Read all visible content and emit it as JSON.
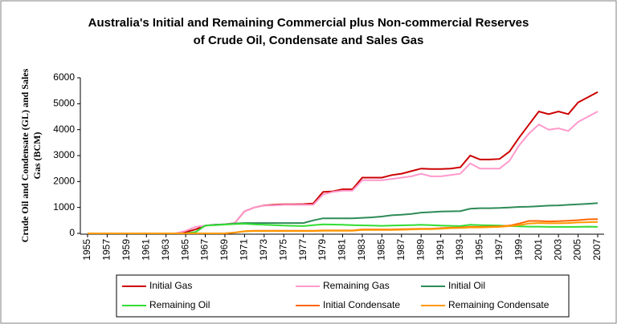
{
  "chart_data": {
    "type": "line",
    "title": [
      "Australia's Initial and Remaining Commercial plus Non-commercial Reserves",
      "of Crude Oil, Condensate and Sales Gas"
    ],
    "y_label": [
      "Crude Oil and Condensate (GL) and Sales",
      "Gas (BCM)"
    ],
    "x": [
      1955,
      1956,
      1957,
      1958,
      1959,
      1960,
      1961,
      1962,
      1963,
      1964,
      1965,
      1966,
      1967,
      1968,
      1969,
      1970,
      1971,
      1972,
      1973,
      1974,
      1975,
      1976,
      1977,
      1978,
      1979,
      1980,
      1981,
      1982,
      1983,
      1984,
      1985,
      1986,
      1987,
      1988,
      1989,
      1990,
      1991,
      1992,
      1993,
      1994,
      1995,
      1996,
      1997,
      1998,
      1999,
      2000,
      2001,
      2002,
      2003,
      2004,
      2005,
      2006,
      2007
    ],
    "xlim": [
      1955,
      2007
    ],
    "xticks": [
      1955,
      1957,
      1959,
      1961,
      1963,
      1965,
      1967,
      1969,
      1971,
      1973,
      1975,
      1977,
      1979,
      1981,
      1983,
      1985,
      1987,
      1989,
      1991,
      1993,
      1995,
      1997,
      1999,
      2001,
      2003,
      2005,
      2007
    ],
    "ylim": [
      0,
      6000
    ],
    "yticks": [
      0,
      1000,
      2000,
      3000,
      4000,
      5000,
      6000
    ],
    "grid": false,
    "series": [
      {
        "name": "Initial Gas",
        "color": "#cc0000",
        "values": [
          0,
          0,
          0,
          0,
          0,
          0,
          0,
          0,
          0,
          0,
          50,
          150,
          300,
          330,
          350,
          400,
          850,
          1000,
          1080,
          1100,
          1120,
          1120,
          1130,
          1150,
          1600,
          1620,
          1700,
          1700,
          2150,
          2150,
          2150,
          2250,
          2300,
          2400,
          2500,
          2480,
          2480,
          2500,
          2550,
          3000,
          2850,
          2850,
          2870,
          3150,
          3700,
          4200,
          4700,
          4600,
          4700,
          4600,
          5050,
          5250,
          5450
        ]
      },
      {
        "name": "Remaining Gas",
        "color": "#ff99cc",
        "values": [
          0,
          0,
          0,
          0,
          0,
          0,
          0,
          0,
          0,
          0,
          100,
          250,
          300,
          330,
          350,
          400,
          850,
          1000,
          1070,
          1080,
          1100,
          1100,
          1100,
          1100,
          1500,
          1600,
          1650,
          1650,
          2050,
          2050,
          2050,
          2100,
          2150,
          2200,
          2300,
          2200,
          2200,
          2250,
          2300,
          2700,
          2500,
          2500,
          2500,
          2800,
          3400,
          3850,
          4200,
          4000,
          4050,
          3950,
          4300,
          4500,
          4700
        ]
      },
      {
        "name": "Initial Oil",
        "color": "#2e8b57",
        "values": [
          0,
          0,
          0,
          0,
          0,
          0,
          0,
          0,
          0,
          0,
          0,
          50,
          300,
          330,
          350,
          380,
          400,
          400,
          400,
          400,
          400,
          400,
          400,
          500,
          580,
          580,
          580,
          580,
          600,
          620,
          650,
          700,
          720,
          750,
          800,
          820,
          840,
          850,
          860,
          950,
          970,
          970,
          980,
          1000,
          1020,
          1030,
          1050,
          1070,
          1080,
          1100,
          1120,
          1140,
          1170
        ]
      },
      {
        "name": "Remaining Oil",
        "color": "#33dd33",
        "values": [
          0,
          0,
          0,
          0,
          0,
          0,
          0,
          0,
          0,
          0,
          0,
          50,
          300,
          320,
          340,
          360,
          370,
          350,
          330,
          320,
          300,
          290,
          280,
          320,
          350,
          340,
          330,
          320,
          310,
          300,
          290,
          300,
          310,
          320,
          330,
          320,
          300,
          290,
          280,
          330,
          320,
          310,
          300,
          280,
          270,
          260,
          260,
          250,
          250,
          250,
          250,
          260,
          250
        ]
      },
      {
        "name": "Initial Condensate",
        "color": "#ff6600",
        "values": [
          0,
          0,
          0,
          0,
          0,
          0,
          0,
          0,
          0,
          0,
          0,
          0,
          0,
          0,
          0,
          30,
          80,
          100,
          100,
          100,
          100,
          100,
          100,
          100,
          110,
          110,
          110,
          110,
          150,
          150,
          150,
          150,
          160,
          170,
          180,
          180,
          200,
          220,
          230,
          250,
          250,
          260,
          270,
          300,
          380,
          480,
          480,
          460,
          470,
          490,
          510,
          540,
          550
        ]
      },
      {
        "name": "Remaining Condensate",
        "color": "#ff9900",
        "values": [
          0,
          0,
          0,
          0,
          0,
          0,
          0,
          0,
          0,
          0,
          0,
          0,
          0,
          0,
          0,
          30,
          80,
          90,
          90,
          90,
          90,
          90,
          90,
          90,
          100,
          100,
          100,
          100,
          130,
          130,
          130,
          130,
          140,
          150,
          160,
          160,
          180,
          200,
          210,
          230,
          230,
          240,
          250,
          280,
          320,
          380,
          400,
          390,
          390,
          400,
          420,
          430,
          440
        ]
      }
    ]
  }
}
